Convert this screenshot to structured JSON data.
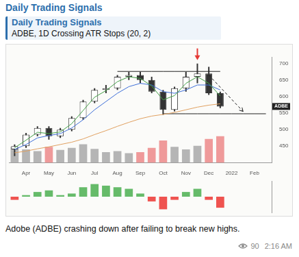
{
  "header": {
    "channel": "Daily Trading Signals"
  },
  "quote": {
    "title": "Daily Trading Signals",
    "text": "ADBE, 1D Crossing ATR Stops (20, 2)"
  },
  "chart_data": [
    {
      "type": "candlestick",
      "categories": [
        null,
        "Apr",
        null,
        "May",
        null,
        "Jun",
        null,
        "Jul",
        null,
        "Aug",
        null,
        "Sep",
        null,
        "Oct",
        null,
        "Nov",
        null,
        "Dec",
        null,
        "2022",
        null,
        "Feb",
        null
      ],
      "series": [
        {
          "type": "bar",
          "axis": "y2",
          "values": [
            3,
            2.5,
            2.2,
            3,
            2.4,
            2.8,
            3.5,
            2.6,
            2,
            2.2,
            1.8,
            2,
            2.8,
            4.2,
            3,
            2.5,
            3.2,
            4.5,
            5,
            null,
            null,
            null,
            null
          ],
          "colors": [
            "#b5b5b5",
            "#b5b5b5",
            "#b5b5b5",
            "#ef9a9a",
            "#b5b5b5",
            "#b5b5b5",
            "#b5b5b5",
            "#b5b5b5",
            "#b5b5b5",
            "#b5b5b5",
            "#b5b5b5",
            "#ef9a9a",
            "#ef9a9a",
            "#ef9a9a",
            "#b5b5b5",
            "#b5b5b5",
            "#b5b5b5",
            "#ef9a9a",
            "#ef9a9a",
            null,
            null,
            null,
            null
          ]
        },
        {
          "type": "candlestick",
          "color": "#333333",
          "open": [
            440,
            450,
            485,
            505,
            480,
            500,
            535,
            585,
            620,
            625,
            660,
            665,
            650,
            615,
            560,
            625,
            660,
            670,
            610,
            null,
            null,
            null,
            null
          ],
          "high": [
            455,
            490,
            510,
            510,
            505,
            540,
            590,
            625,
            635,
            665,
            675,
            675,
            660,
            620,
            630,
            675,
            700,
            690,
            615,
            null,
            null,
            null,
            null
          ],
          "low": [
            420,
            445,
            480,
            470,
            475,
            495,
            530,
            580,
            610,
            620,
            650,
            640,
            610,
            545,
            555,
            615,
            640,
            605,
            565,
            null,
            null,
            null,
            null
          ],
          "close": [
            450,
            485,
            505,
            480,
            500,
            535,
            585,
            620,
            625,
            660,
            665,
            650,
            615,
            560,
            625,
            660,
            670,
            610,
            570,
            null,
            null,
            null,
            null
          ]
        },
        {
          "type": "line",
          "color": "#43a047",
          "values": [
            445,
            468,
            492,
            488,
            493,
            518,
            558,
            598,
            618,
            645,
            660,
            655,
            632,
            590,
            603,
            640,
            660,
            640,
            602,
            null,
            null,
            null,
            null
          ]
        },
        {
          "type": "line",
          "color": "#3f6fd8",
          "values": [
            440,
            455,
            475,
            482,
            488,
            505,
            530,
            560,
            585,
            610,
            630,
            640,
            635,
            615,
            610,
            620,
            635,
            635,
            620,
            null,
            null,
            null,
            null
          ]
        },
        {
          "type": "line",
          "color": "#e0a060",
          "values": [
            430,
            435,
            442,
            448,
            455,
            462,
            472,
            485,
            497,
            510,
            522,
            533,
            541,
            546,
            552,
            560,
            568,
            574,
            578,
            null,
            null,
            null,
            null
          ]
        },
        {
          "type": "line",
          "color": "#222222",
          "values": [
            null,
            null,
            null,
            null,
            null,
            null,
            null,
            null,
            null,
            676,
            676,
            676,
            676,
            676,
            676,
            676,
            676,
            676,
            676,
            null,
            null,
            null,
            null
          ]
        },
        {
          "type": "line",
          "color": "#222222",
          "values": [
            null,
            null,
            null,
            null,
            null,
            null,
            null,
            null,
            null,
            null,
            null,
            null,
            null,
            548,
            548,
            548,
            548,
            548,
            548,
            548,
            548,
            548,
            548
          ]
        },
        {
          "type": "line",
          "color": "#222222",
          "line_style": "dashed",
          "values": [
            null,
            null,
            null,
            null,
            null,
            null,
            null,
            null,
            null,
            null,
            null,
            null,
            null,
            null,
            null,
            null,
            null,
            665,
            null,
            null,
            555,
            null,
            null
          ]
        }
      ],
      "ylim": [
        400,
        720
      ],
      "yticks": [
        450,
        500,
        550,
        600,
        650,
        700
      ],
      "y2lim": [
        0,
        20
      ],
      "grid": false,
      "annotations": [
        "ADBE"
      ]
    },
    {
      "type": "bar",
      "values": [
        -2,
        1,
        3,
        4,
        1,
        2,
        6,
        8,
        7,
        6,
        5,
        2,
        -3,
        -8,
        -2,
        3,
        5,
        -2,
        -7,
        null,
        null,
        null,
        null
      ],
      "colors": [
        "#ef5350",
        "#66bb6a",
        "#66bb6a",
        "#66bb6a",
        "#66bb6a",
        "#66bb6a",
        "#66bb6a",
        "#66bb6a",
        "#66bb6a",
        "#66bb6a",
        "#66bb6a",
        "#66bb6a",
        "#ef5350",
        "#ef5350",
        "#ef5350",
        "#66bb6a",
        "#66bb6a",
        "#ef5350",
        "#ef5350",
        null,
        null,
        null,
        null
      ],
      "ylim": [
        -10,
        10
      ],
      "tick_labels": false,
      "grid": false
    }
  ],
  "caption": "Adobe (ADBE) crashing down after failing to break new highs.",
  "footer": {
    "views": 90,
    "time": "2:16 AM"
  }
}
